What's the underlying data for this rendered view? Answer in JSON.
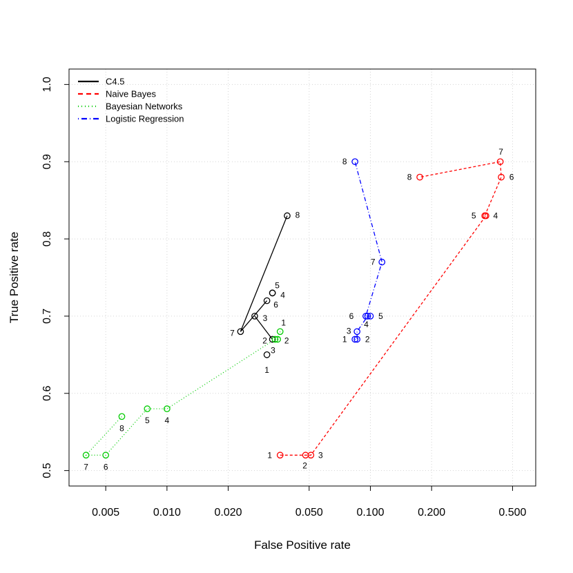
{
  "chart_data": {
    "type": "scatter",
    "xlabel": "False Positive rate",
    "ylabel": "True Positive rate",
    "xscale": "log",
    "xlim": [
      0.0033,
      0.65
    ],
    "ylim": [
      0.48,
      1.02
    ],
    "xticks": [
      0.005,
      0.01,
      0.02,
      0.05,
      0.1,
      0.2,
      0.5
    ],
    "xtick_labels": [
      "0.005",
      "0.010",
      "0.020",
      "0.050",
      "0.100",
      "0.200",
      "0.500"
    ],
    "yticks": [
      0.5,
      0.6,
      0.7,
      0.8,
      0.9,
      1.0
    ],
    "ytick_labels": [
      "0.5",
      "0.6",
      "0.7",
      "0.8",
      "0.9",
      "1.0"
    ],
    "grid": true,
    "legend_position": "top-left",
    "series": [
      {
        "name": "C4.5",
        "color": "#000000",
        "dash": "solid",
        "points": [
          {
            "label": "1",
            "x": 0.031,
            "y": 0.65
          },
          {
            "label": "2",
            "x": 0.033,
            "y": 0.67
          },
          {
            "label": "3",
            "x": 0.027,
            "y": 0.7
          },
          {
            "label": "4",
            "x": 0.033,
            "y": 0.73
          },
          {
            "label": "5",
            "x": 0.033,
            "y": 0.73
          },
          {
            "label": "6",
            "x": 0.031,
            "y": 0.72
          },
          {
            "label": "7",
            "x": 0.023,
            "y": 0.68
          },
          {
            "label": "8",
            "x": 0.039,
            "y": 0.83
          }
        ],
        "segments": [
          [
            2,
            1
          ],
          [
            6,
            5
          ],
          [
            6,
            7
          ]
        ]
      },
      {
        "name": "Naive Bayes",
        "color": "#ff0000",
        "dash": "dashed",
        "points": [
          {
            "label": "1",
            "x": 0.036,
            "y": 0.52
          },
          {
            "label": "2",
            "x": 0.048,
            "y": 0.52
          },
          {
            "label": "3",
            "x": 0.051,
            "y": 0.52
          },
          {
            "label": "4",
            "x": 0.37,
            "y": 0.83
          },
          {
            "label": "5",
            "x": 0.365,
            "y": 0.83
          },
          {
            "label": "6",
            "x": 0.44,
            "y": 0.88
          },
          {
            "label": "7",
            "x": 0.435,
            "y": 0.9
          },
          {
            "label": "8",
            "x": 0.175,
            "y": 0.88
          }
        ],
        "segments": [
          [
            0,
            1,
            2,
            3,
            4,
            5,
            6,
            7
          ]
        ]
      },
      {
        "name": "Bayesian Networks",
        "color": "#00cc00",
        "dash": "dotted",
        "points": [
          {
            "label": "1",
            "x": 0.036,
            "y": 0.68
          },
          {
            "label": "2",
            "x": 0.035,
            "y": 0.67
          },
          {
            "label": "3",
            "x": 0.034,
            "y": 0.67
          },
          {
            "label": "4",
            "x": 0.01,
            "y": 0.58
          },
          {
            "label": "5",
            "x": 0.008,
            "y": 0.58
          },
          {
            "label": "6",
            "x": 0.005,
            "y": 0.52
          },
          {
            "label": "7",
            "x": 0.004,
            "y": 0.52
          },
          {
            "label": "8",
            "x": 0.006,
            "y": 0.57
          }
        ],
        "segments": [
          [
            0,
            1,
            2,
            3,
            4,
            5,
            6,
            7
          ]
        ]
      },
      {
        "name": "Logistic Regression",
        "color": "#0000ff",
        "dash": "dotdash",
        "points": [
          {
            "label": "1",
            "x": 0.084,
            "y": 0.67
          },
          {
            "label": "2",
            "x": 0.086,
            "y": 0.67
          },
          {
            "label": "3",
            "x": 0.086,
            "y": 0.68
          },
          {
            "label": "4",
            "x": 0.097,
            "y": 0.7
          },
          {
            "label": "5",
            "x": 0.1,
            "y": 0.7
          },
          {
            "label": "6",
            "x": 0.095,
            "y": 0.7
          },
          {
            "label": "7",
            "x": 0.114,
            "y": 0.77
          },
          {
            "label": "8",
            "x": 0.084,
            "y": 0.9
          }
        ],
        "segments": [
          [
            0,
            1,
            2,
            3,
            4,
            5,
            6,
            7
          ]
        ]
      }
    ]
  }
}
